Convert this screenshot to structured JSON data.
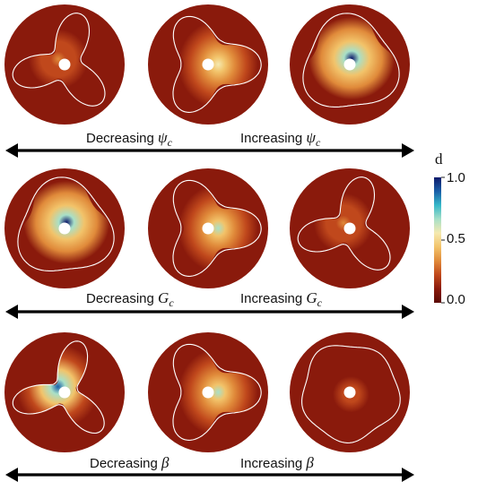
{
  "rows": [
    {
      "decreasing": {
        "text": "Decreasing",
        "symbol": "ψ",
        "subscript": "c"
      },
      "increasing": {
        "text": "Increasing",
        "symbol": "ψ",
        "subscript": "c"
      },
      "panels": [
        {
          "shape": "tri-narrow",
          "damage_peak": 0.25
        },
        {
          "shape": "tri-mid",
          "damage_peak": 0.55
        },
        {
          "shape": "tri-wide",
          "damage_peak": 0.95
        }
      ]
    },
    {
      "decreasing": {
        "text": "Decreasing",
        "symbol": "G",
        "subscript": "c"
      },
      "increasing": {
        "text": "Increasing",
        "symbol": "G",
        "subscript": "c"
      },
      "panels": [
        {
          "shape": "tri-wide",
          "damage_peak": 0.95
        },
        {
          "shape": "tri-mid",
          "damage_peak": 0.6
        },
        {
          "shape": "tri-narrow",
          "damage_peak": 0.25
        }
      ]
    },
    {
      "decreasing": {
        "text": "Decreasing",
        "symbol": "β",
        "subscript": ""
      },
      "increasing": {
        "text": "Increasing",
        "symbol": "β",
        "subscript": ""
      },
      "panels": [
        {
          "shape": "tri-arms",
          "damage_peak": 0.85
        },
        {
          "shape": "tri-mid",
          "damage_peak": 0.6
        },
        {
          "shape": "round",
          "damage_peak": 0.2
        }
      ]
    }
  ],
  "colorbar": {
    "title": "d",
    "ticks": [
      "1.0",
      "0.5",
      "0.0"
    ],
    "colors": [
      "#0d1a6b",
      "#1a5fa8",
      "#36b8c9",
      "#a8e0c8",
      "#f5e9b0",
      "#f2c36a",
      "#e08a3a",
      "#c0481c",
      "#8a1a0c",
      "#5a0a05"
    ]
  }
}
